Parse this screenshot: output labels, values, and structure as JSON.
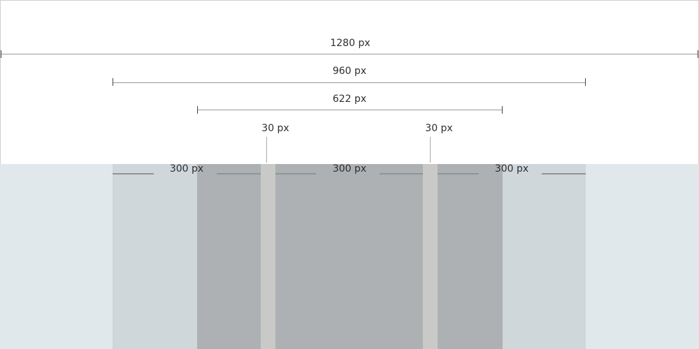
{
  "dimensions": {
    "viewport": "1280 px",
    "container": "960 px",
    "content": "622 px",
    "gutter_left": "30 px",
    "gutter_right": "30 px",
    "column_1": "300 px",
    "column_2": "300 px",
    "column_3": "300 px"
  },
  "colors": {
    "background": "#e1e8eb",
    "container": "#d0d7da",
    "content": "#adb1b3",
    "gutter": "#c9c9c8"
  }
}
